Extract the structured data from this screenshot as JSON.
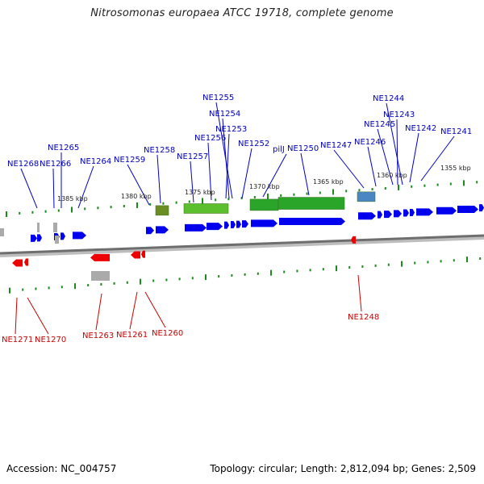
{
  "title": "Nitrosomonas europaea ATCC 19718, complete genome",
  "footer": {
    "accession": "Accession: NC_004757",
    "stats": "Topology: circular; Length: 2,812,094 bp; Genes: 2,509"
  },
  "colors": {
    "forward_gene": "#0000ee",
    "reverse_gene": "#ee0000",
    "forward_label": "#0000bb",
    "reverse_label": "#cc0000",
    "tick": "#1a8a1a",
    "backbone": "#777777",
    "pseudo": "#aaaaaa",
    "rna": "#4a86c4",
    "cluster_green": "#2aa52a",
    "cluster_olive": "#6b8e23"
  },
  "scale_labels": [
    "1385 kbp",
    "1380 kbp",
    "1375 kbp",
    "1370 kbp",
    "1365 kbp",
    "1360 kbp",
    "1355 kbp"
  ],
  "forward_genes": [
    "NE1268",
    "NE1266",
    "NE1265",
    "NE1264",
    "NE1259",
    "NE1258",
    "NE1257",
    "NE1256",
    "NE1255",
    "NE1254",
    "NE1253",
    "NE1252",
    "pilJ",
    "NE1250",
    "NE1247",
    "NE1246",
    "NE1245",
    "NE1244",
    "NE1243",
    "NE1242",
    "NE1241"
  ],
  "reverse_genes": [
    "NE1271",
    "NE1270",
    "NE1263",
    "NE1261",
    "NE1260",
    "NE1248"
  ]
}
